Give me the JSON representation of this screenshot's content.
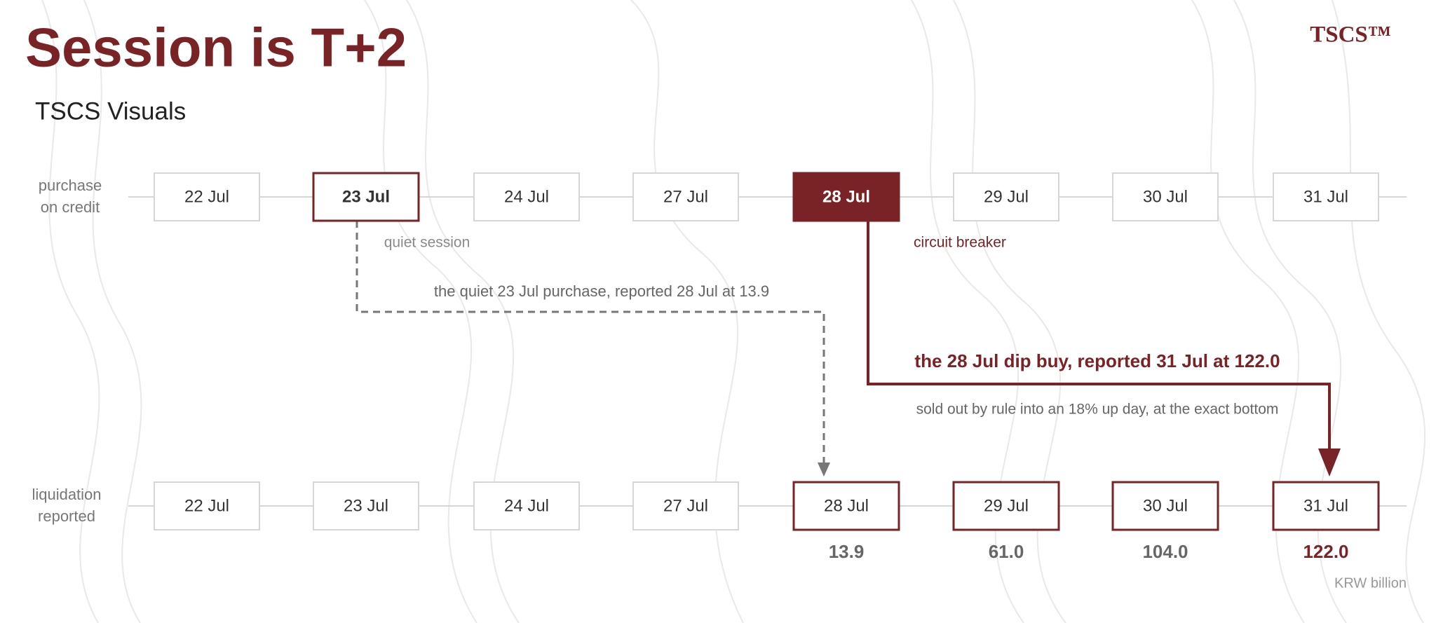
{
  "header": {
    "title": "Session is T+2",
    "subtitle": "TSCS Visuals",
    "logo": "TSCS™"
  },
  "rows": [
    {
      "label": [
        "purchase",
        "on credit"
      ],
      "dates": [
        "22 Jul",
        "23 Jul",
        "24 Jul",
        "27 Jul",
        "28 Jul",
        "29 Jul",
        "30 Jul",
        "31 Jul"
      ]
    },
    {
      "label": [
        "liquidation",
        "reported"
      ],
      "dates": [
        "22 Jul",
        "23 Jul",
        "24 Jul",
        "27 Jul",
        "28 Jul",
        "29 Jul",
        "30 Jul",
        "31 Jul"
      ]
    }
  ],
  "annotations": {
    "quiet": "quiet session",
    "breaker": "circuit breaker",
    "quiet_path": "the quiet 23 Jul purchase, reported 28 Jul at 13.9",
    "dip_path": "the 28 Jul dip buy, reported 31 Jul at 122.0",
    "dip_note": "sold out by rule into an 18% up day, at the exact bottom"
  },
  "values": [
    "13.9",
    "61.0",
    "104.0",
    "122.0"
  ],
  "unit": "KRW billion"
}
